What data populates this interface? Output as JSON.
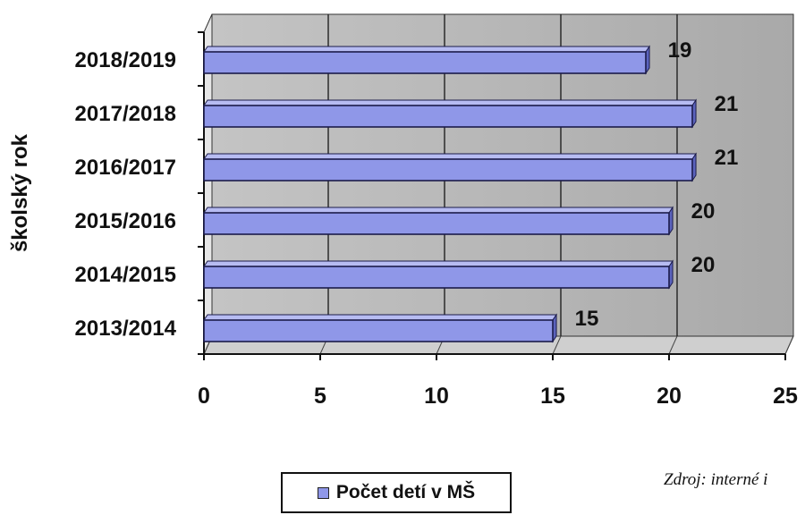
{
  "chart_data": {
    "type": "bar",
    "orientation": "horizontal",
    "style": "3d",
    "ylabel": "školský rok",
    "xlabel": "",
    "categories": [
      "2018/2019",
      "2017/2018",
      "2016/2017",
      "2015/2016",
      "2014/2015",
      "2013/2014"
    ],
    "series": [
      {
        "name": "Počet detí v MŠ",
        "values": [
          19,
          21,
          21,
          20,
          20,
          15
        ]
      }
    ],
    "data_labels": [
      "19",
      "21",
      "21",
      "20",
      "20",
      "15"
    ],
    "xlim": [
      0,
      25
    ],
    "x_ticks": [
      "0",
      "5",
      "10",
      "15",
      "20",
      "25"
    ],
    "grid": true,
    "legend_position": "bottom",
    "colors": {
      "bar_face": "#8f97e8",
      "bar_top": "#b7bcf2",
      "bar_side": "#5b63bd",
      "plot_bg": "#b8b8b8"
    }
  },
  "source_note": "Zdroj: interné i"
}
